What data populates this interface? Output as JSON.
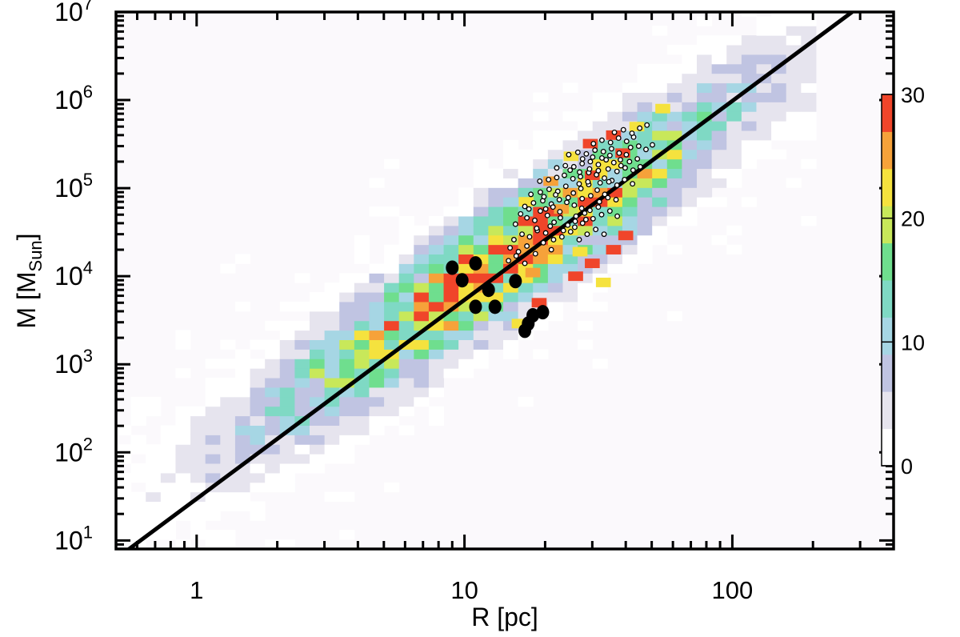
{
  "chart_data": {
    "type": "heatmap",
    "title": "",
    "xlabel": "R [pc]",
    "ylabel": "M [M",
    "ylabel_sub": "Sun",
    "ylabel_close": "]",
    "x_scale": "log",
    "y_scale": "log",
    "xlim": [
      0.5,
      400
    ],
    "ylim": [
      8,
      10000000
    ],
    "x_ticks": [
      {
        "value": 1,
        "label": "1"
      },
      {
        "value": 10,
        "label": "10"
      },
      {
        "value": 100,
        "label": "100"
      }
    ],
    "y_ticks": [
      {
        "value": 10,
        "base": "10",
        "exp": "1"
      },
      {
        "value": 100,
        "base": "10",
        "exp": "2"
      },
      {
        "value": 1000,
        "base": "10",
        "exp": "3"
      },
      {
        "value": 10000,
        "base": "10",
        "exp": "4"
      },
      {
        "value": 100000,
        "base": "10",
        "exp": "5"
      },
      {
        "value": 1000000,
        "base": "10",
        "exp": "6"
      },
      {
        "value": 10000000,
        "base": "10",
        "exp": "7"
      }
    ],
    "colorbar": {
      "min": 0,
      "max": 30,
      "ticks": [
        {
          "value": 0,
          "label": "0"
        },
        {
          "value": 10,
          "label": "10"
        },
        {
          "value": 20,
          "label": "20"
        },
        {
          "value": 30,
          "label": "30"
        }
      ],
      "colors": [
        "#ffffff",
        "#e6e4ee",
        "#c0c4e2",
        "#a6d6e4",
        "#7fd9c4",
        "#6fde8e",
        "#c8e85a",
        "#f5e23e",
        "#f6a23a",
        "#f0452a"
      ]
    },
    "fit_line": {
      "slope": 2,
      "points": [
        [
          0.55,
          7.7
        ],
        [
          280,
          10000000
        ]
      ]
    },
    "cloud_shape": {
      "center_log_R": 1.15,
      "center_log_M": 4.2,
      "slope": 2.0,
      "log_R_min": -0.45,
      "log_R_max": 2.3
    },
    "high_count_cells": [
      {
        "R": 29.5,
        "M": 320000,
        "count": 29
      },
      {
        "R": 36,
        "M": 400000,
        "count": 29
      },
      {
        "R": 39,
        "M": 250000,
        "count": 28
      },
      {
        "R": 30,
        "M": 140000,
        "count": 27
      },
      {
        "R": 36,
        "M": 20000,
        "count": 29
      },
      {
        "R": 40,
        "M": 29000,
        "count": 28
      },
      {
        "R": 30,
        "M": 14000,
        "count": 29
      },
      {
        "R": 19,
        "M": 5000,
        "count": 29
      },
      {
        "R": 26,
        "M": 10000,
        "count": 27
      },
      {
        "R": 23,
        "M": 58000,
        "count": 26
      },
      {
        "R": 21,
        "M": 120000,
        "count": 24
      },
      {
        "R": 17,
        "M": 70000,
        "count": 23
      },
      {
        "R": 16,
        "M": 2900,
        "count": 22
      },
      {
        "R": 18,
        "M": 11000,
        "count": 24
      },
      {
        "R": 33,
        "M": 8500,
        "count": 22
      },
      {
        "R": 27,
        "M": 19000,
        "count": 22
      },
      {
        "R": 44,
        "M": 500000,
        "count": 21
      },
      {
        "R": 55,
        "M": 800000,
        "count": 22
      },
      {
        "R": 25,
        "M": 230000,
        "count": 22
      }
    ],
    "series": [
      {
        "style": "small-open-circles",
        "points": [
          [
            15.5,
            39000
          ],
          [
            16.2,
            51000
          ],
          [
            17.1,
            46000
          ],
          [
            18.3,
            43000
          ],
          [
            19.2,
            55000
          ],
          [
            20.4,
            49000
          ],
          [
            21.6,
            41000
          ],
          [
            22.8,
            46000
          ],
          [
            24.3,
            38000
          ],
          [
            25.8,
            36000
          ],
          [
            27.6,
            40000
          ],
          [
            16.8,
            62000
          ],
          [
            18.1,
            68000
          ],
          [
            19.6,
            72000
          ],
          [
            21.1,
            66000
          ],
          [
            22.6,
            74000
          ],
          [
            24.1,
            69000
          ],
          [
            25.7,
            64000
          ],
          [
            27.4,
            59000
          ],
          [
            29.4,
            56000
          ],
          [
            31.6,
            61000
          ],
          [
            17.7,
            85000
          ],
          [
            19.2,
            90000
          ],
          [
            20.7,
            97000
          ],
          [
            22.3,
            92000
          ],
          [
            23.9,
            105000
          ],
          [
            25.5,
            88000
          ],
          [
            27.2,
            99000
          ],
          [
            29.1,
            110000
          ],
          [
            31.3,
            95000
          ],
          [
            33.4,
            85000
          ],
          [
            19.1,
            120000
          ],
          [
            20.6,
            125000
          ],
          [
            22.1,
            132000
          ],
          [
            23.6,
            140000
          ],
          [
            25.4,
            128000
          ],
          [
            27.1,
            135000
          ],
          [
            29.1,
            150000
          ],
          [
            31.1,
            142000
          ],
          [
            33.3,
            130000
          ],
          [
            35.5,
            122000
          ],
          [
            22.1,
            170000
          ],
          [
            23.8,
            180000
          ],
          [
            25.6,
            175000
          ],
          [
            27.5,
            190000
          ],
          [
            29.5,
            200000
          ],
          [
            31.6,
            185000
          ],
          [
            33.8,
            210000
          ],
          [
            36.1,
            195000
          ],
          [
            38.4,
            180000
          ],
          [
            24.5,
            240000
          ],
          [
            26.5,
            255000
          ],
          [
            28.5,
            245000
          ],
          [
            30.7,
            270000
          ],
          [
            33.0,
            260000
          ],
          [
            35.4,
            280000
          ],
          [
            37.8,
            250000
          ],
          [
            40.2,
            240000
          ],
          [
            30.3,
            320000
          ],
          [
            32.6,
            350000
          ],
          [
            35.1,
            330000
          ],
          [
            37.6,
            370000
          ],
          [
            40.3,
            340000
          ],
          [
            42.8,
            380000
          ],
          [
            36.3,
            430000
          ],
          [
            39.2,
            460000
          ],
          [
            42.2,
            420000
          ],
          [
            45.1,
            480000
          ],
          [
            48.0,
            520000
          ],
          [
            15.3,
            26000
          ],
          [
            16.4,
            30000
          ],
          [
            17.5,
            28000
          ],
          [
            18.7,
            33000
          ],
          [
            20.1,
            31000
          ],
          [
            21.5,
            26000
          ],
          [
            14.8,
            21000
          ],
          [
            15.9,
            19000
          ],
          [
            17.1,
            22000
          ],
          [
            18.4,
            18000
          ],
          [
            19.7,
            24000
          ],
          [
            21.1,
            20000
          ],
          [
            14.6,
            15000
          ],
          [
            15.6,
            17000
          ],
          [
            16.8,
            14000
          ],
          [
            23.1,
            28000
          ],
          [
            24.9,
            32000
          ],
          [
            26.8,
            26000
          ],
          [
            28.7,
            30000
          ],
          [
            30.9,
            34000
          ],
          [
            33.2,
            30000
          ],
          [
            26.1,
            48000
          ],
          [
            28.1,
            52000
          ],
          [
            30.2,
            45000
          ],
          [
            32.5,
            50000
          ],
          [
            34.9,
            55000
          ],
          [
            37.2,
            48000
          ],
          [
            27.5,
            76000
          ],
          [
            29.6,
            82000
          ],
          [
            31.9,
            70000
          ],
          [
            34.3,
            78000
          ],
          [
            36.8,
            74000
          ],
          [
            32.1,
            115000
          ],
          [
            34.6,
            118000
          ],
          [
            37.1,
            108000
          ],
          [
            39.6,
            125000
          ],
          [
            42.4,
            112000
          ],
          [
            34.4,
            165000
          ],
          [
            37.1,
            155000
          ],
          [
            39.8,
            170000
          ],
          [
            42.6,
            160000
          ],
          [
            45.3,
            175000
          ],
          [
            20.1,
            58000
          ],
          [
            21.4,
            61000
          ],
          [
            22.7,
            54000
          ],
          [
            18.6,
            35000
          ],
          [
            20.9,
            37000
          ],
          [
            23.4,
            33000
          ],
          [
            25.9,
            42000
          ],
          [
            28.4,
            44000
          ],
          [
            17.4,
            58000
          ],
          [
            19.8,
            80000
          ],
          [
            21.9,
            84000
          ],
          [
            24.4,
            78000
          ],
          [
            26.8,
            112000
          ],
          [
            28.9,
            118000
          ],
          [
            24.8,
            160000
          ],
          [
            26.9,
            152000
          ],
          [
            29.3,
            165000
          ],
          [
            31.6,
            158000
          ],
          [
            27.6,
            215000
          ],
          [
            30.1,
            225000
          ],
          [
            32.6,
            220000
          ],
          [
            34.9,
            235000
          ],
          [
            38.2,
            210000
          ],
          [
            41.3,
            200000
          ],
          [
            44.2,
            215000
          ],
          [
            41.7,
            290000
          ],
          [
            44.7,
            300000
          ],
          [
            47.6,
            275000
          ],
          [
            50.3,
            310000
          ]
        ]
      },
      {
        "style": "large-filled-circles",
        "points": [
          [
            9.0,
            12500
          ],
          [
            9.8,
            9000
          ],
          [
            11.0,
            14000
          ],
          [
            12.3,
            7000
          ],
          [
            11.0,
            4500
          ],
          [
            13.0,
            4500
          ],
          [
            15.5,
            8800
          ],
          [
            16.8,
            2400
          ],
          [
            17.3,
            2900
          ],
          [
            18.0,
            3600
          ],
          [
            19.6,
            3900
          ]
        ]
      }
    ]
  }
}
